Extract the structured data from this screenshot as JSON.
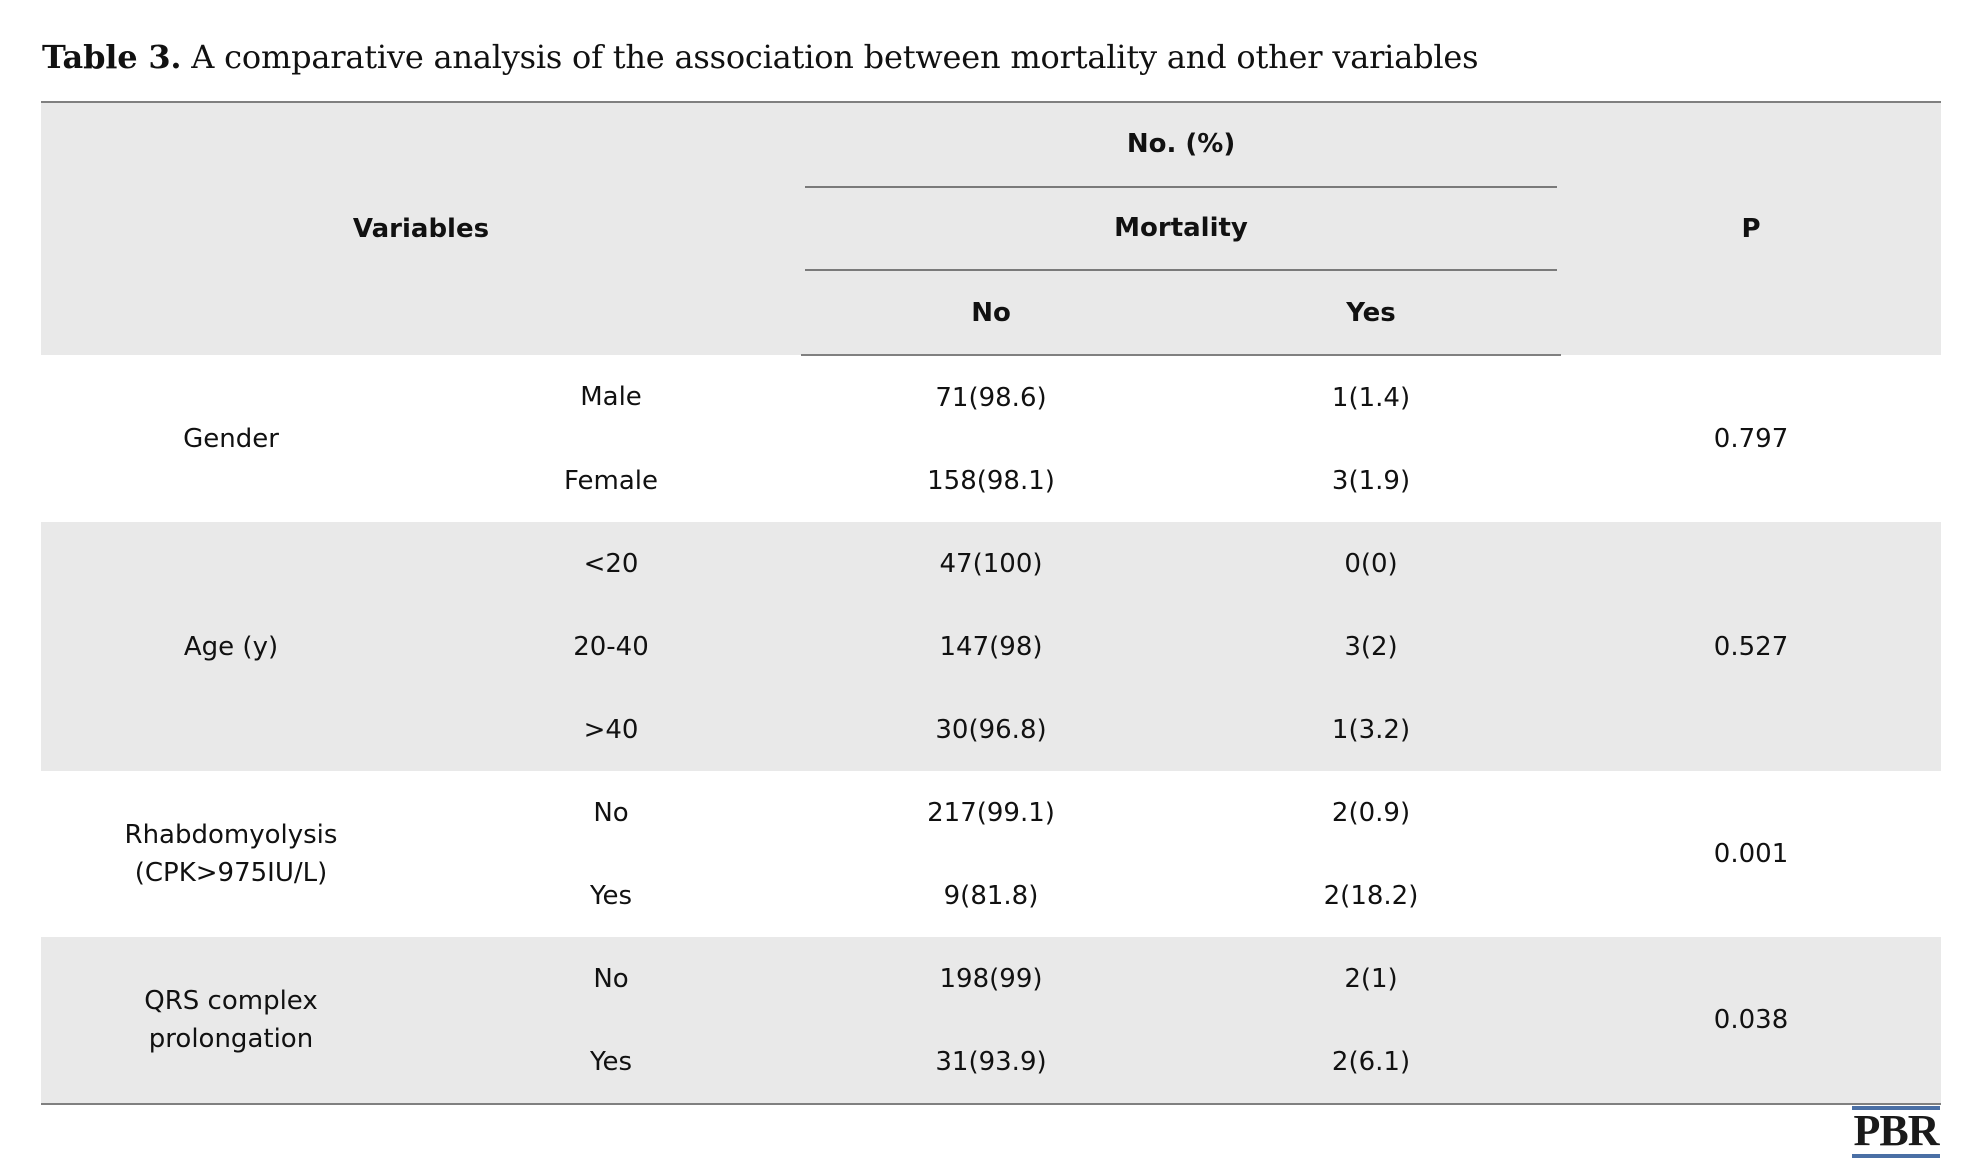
{
  "caption": {
    "label": "Table 3.",
    "text": " A comparative analysis of the association between mortality and other variables"
  },
  "header": {
    "variables": "Variables",
    "no_pct": "No. (%)",
    "mortality": "Mortality",
    "no": "No",
    "yes": "Yes",
    "p": "P"
  },
  "groups": [
    {
      "name": "Gender",
      "p": "0.797",
      "rows": [
        {
          "level": "Male",
          "no": "71(98.6)",
          "yes": "1(1.4)"
        },
        {
          "level": "Female",
          "no": "158(98.1)",
          "yes": "3(1.9)"
        }
      ]
    },
    {
      "name": "Age (y)",
      "p": "0.527",
      "rows": [
        {
          "level": "<20",
          "no": "47(100)",
          "yes": "0(0)"
        },
        {
          "level": "20-40",
          "no": "147(98)",
          "yes": "3(2)"
        },
        {
          "level": ">40",
          "no": "30(96.8)",
          "yes": "1(3.2)"
        }
      ]
    },
    {
      "name_line1": "Rhabdomyolysis",
      "name_line2": "(CPK>975IU/L)",
      "p": "0.001",
      "rows": [
        {
          "level": "No",
          "no": "217(99.1)",
          "yes": "2(0.9)"
        },
        {
          "level": "Yes",
          "no": "9(81.8)",
          "yes": "2(18.2)"
        }
      ]
    },
    {
      "name_line1": "QRS complex",
      "name_line2": "prolongation",
      "p": "0.038",
      "rows": [
        {
          "level": "No",
          "no": "198(99)",
          "yes": "2(1)"
        },
        {
          "level": "Yes",
          "no": "31(93.9)",
          "yes": "2(6.1)"
        }
      ]
    }
  ],
  "logo": {
    "text": "PBR",
    "color": "#4a6fa5"
  }
}
